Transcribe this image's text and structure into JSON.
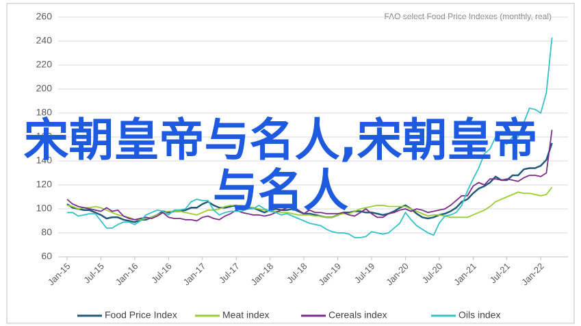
{
  "chart_data": {
    "type": "line",
    "source_note": "FAO select Food Price Indexes (monthly, real)",
    "overlay_text": "宋朝皇帝与名人,宋朝皇帝与名人",
    "categories": [
      "Jan-15",
      null,
      null,
      null,
      null,
      null,
      "Jul-15",
      null,
      null,
      null,
      null,
      null,
      "Jan-16",
      null,
      null,
      null,
      null,
      null,
      "Jul-16",
      null,
      null,
      null,
      null,
      null,
      "Jan-17",
      null,
      null,
      null,
      null,
      null,
      "Jul-17",
      null,
      null,
      null,
      null,
      null,
      "Jan-18",
      null,
      null,
      null,
      null,
      null,
      "Jul-18",
      null,
      null,
      null,
      null,
      null,
      "Jan-19",
      null,
      null,
      null,
      null,
      null,
      "Jul-19",
      null,
      null,
      null,
      null,
      null,
      "Jan-20",
      null,
      null,
      null,
      null,
      null,
      "Jul-20",
      null,
      null,
      null,
      null,
      null,
      "Jan-21",
      null,
      null,
      null,
      null,
      null,
      "Jul-21",
      null,
      null,
      null,
      null,
      null,
      "Jan-22",
      null,
      null
    ],
    "ylim": [
      60,
      260
    ],
    "yticks": [
      60,
      80,
      100,
      120,
      140,
      160,
      180,
      200,
      220,
      240,
      260
    ],
    "grid": true,
    "legend": "bottom",
    "series": [
      {
        "name": "Food Price Index",
        "color": "#1f5a7a",
        "values": [
          104,
          101,
          100,
          99,
          99,
          97,
          95,
          92,
          93,
          93,
          91,
          90,
          89,
          91,
          91,
          93,
          95,
          98,
          97,
          98,
          98,
          99,
          101,
          101,
          104,
          106,
          103,
          101,
          101,
          102,
          103,
          101,
          100,
          101,
          99,
          97,
          99,
          100,
          99,
          99,
          100,
          98,
          96,
          96,
          95,
          94,
          93,
          93,
          95,
          97,
          97,
          98,
          98,
          97,
          97,
          96,
          95,
          96,
          98,
          101,
          103,
          100,
          96,
          93,
          92,
          93,
          95,
          96,
          98,
          101,
          106,
          108,
          113,
          117,
          119,
          122,
          127,
          124,
          124,
          128,
          128,
          133,
          134,
          134,
          136,
          141,
          155
        ]
      },
      {
        "name": "Meat index",
        "color": "#9acd32",
        "values": [
          103,
          102,
          100,
          101,
          101,
          102,
          101,
          99,
          97,
          95,
          94,
          93,
          91,
          91,
          92,
          93,
          95,
          97,
          98,
          98,
          98,
          97,
          96,
          95,
          97,
          99,
          99,
          100,
          102,
          103,
          103,
          103,
          102,
          101,
          100,
          99,
          98,
          98,
          97,
          97,
          96,
          95,
          95,
          95,
          94,
          94,
          93,
          93,
          95,
          96,
          96,
          98,
          100,
          101,
          102,
          103,
          103,
          102,
          102,
          102,
          102,
          100,
          98,
          96,
          94,
          95,
          95,
          94,
          93,
          93,
          93,
          93,
          95,
          97,
          99,
          102,
          106,
          108,
          110,
          112,
          114,
          113,
          113,
          112,
          111,
          112,
          118
        ]
      },
      {
        "name": "Cereals index",
        "color": "#7b2c8b",
        "values": [
          108,
          104,
          102,
          101,
          100,
          99,
          98,
          101,
          98,
          99,
          94,
          92,
          91,
          92,
          93,
          92,
          94,
          97,
          93,
          92,
          92,
          91,
          91,
          90,
          93,
          94,
          92,
          91,
          94,
          96,
          99,
          97,
          96,
          95,
          95,
          94,
          95,
          97,
          99,
          101,
          102,
          99,
          96,
          99,
          97,
          97,
          96,
          96,
          96,
          97,
          95,
          94,
          97,
          100,
          96,
          93,
          93,
          96,
          97,
          99,
          100,
          98,
          100,
          99,
          97,
          98,
          99,
          100,
          103,
          107,
          111,
          111,
          119,
          122,
          120,
          125,
          125,
          124,
          125,
          124,
          123,
          126,
          128,
          128,
          127,
          130,
          166
        ]
      },
      {
        "name": "Oils index",
        "color": "#33c0c8",
        "values": [
          97,
          97,
          94,
          95,
          96,
          96,
          90,
          84,
          84,
          87,
          89,
          89,
          87,
          90,
          95,
          97,
          99,
          98,
          95,
          99,
          99,
          100,
          106,
          108,
          107,
          107,
          99,
          95,
          97,
          98,
          98,
          98,
          100,
          100,
          103,
          100,
          98,
          97,
          95,
          96,
          94,
          92,
          90,
          88,
          87,
          86,
          83,
          81,
          80,
          80,
          79,
          76,
          76,
          77,
          81,
          80,
          79,
          80,
          84,
          88,
          97,
          91,
          86,
          83,
          80,
          78,
          88,
          94,
          95,
          97,
          103,
          115,
          125,
          134,
          146,
          150,
          160,
          156,
          154,
          160,
          160,
          172,
          184,
          183,
          180,
          197,
          243
        ]
      }
    ]
  }
}
